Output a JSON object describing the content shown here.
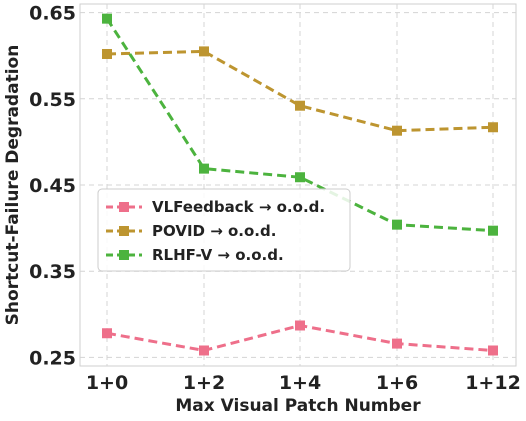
{
  "chart_data": {
    "type": "line",
    "title": "",
    "xlabel": "Max Visual Patch Number",
    "ylabel": "Shortcut-Failure Degradation",
    "categories": [
      "1+0",
      "1+2",
      "1+4",
      "1+6",
      "1+12"
    ],
    "yticks": [
      "0.25",
      "0.35",
      "0.45",
      "0.55",
      "0.65"
    ],
    "ylim": [
      0.24,
      0.66
    ],
    "grid": true,
    "legend_position": "center-left",
    "series": [
      {
        "name": "VLFeedback → o.o.d.",
        "color": "#EE6F8A",
        "values": [
          0.278,
          0.258,
          0.287,
          0.266,
          0.258
        ]
      },
      {
        "name": "POVID → o.o.d.",
        "color": "#BD9530",
        "values": [
          0.602,
          0.605,
          0.542,
          0.513,
          0.517
        ]
      },
      {
        "name": "RLHF-V → o.o.d.",
        "color": "#4CB33E",
        "values": [
          0.643,
          0.469,
          0.459,
          0.404,
          0.397
        ]
      }
    ]
  }
}
